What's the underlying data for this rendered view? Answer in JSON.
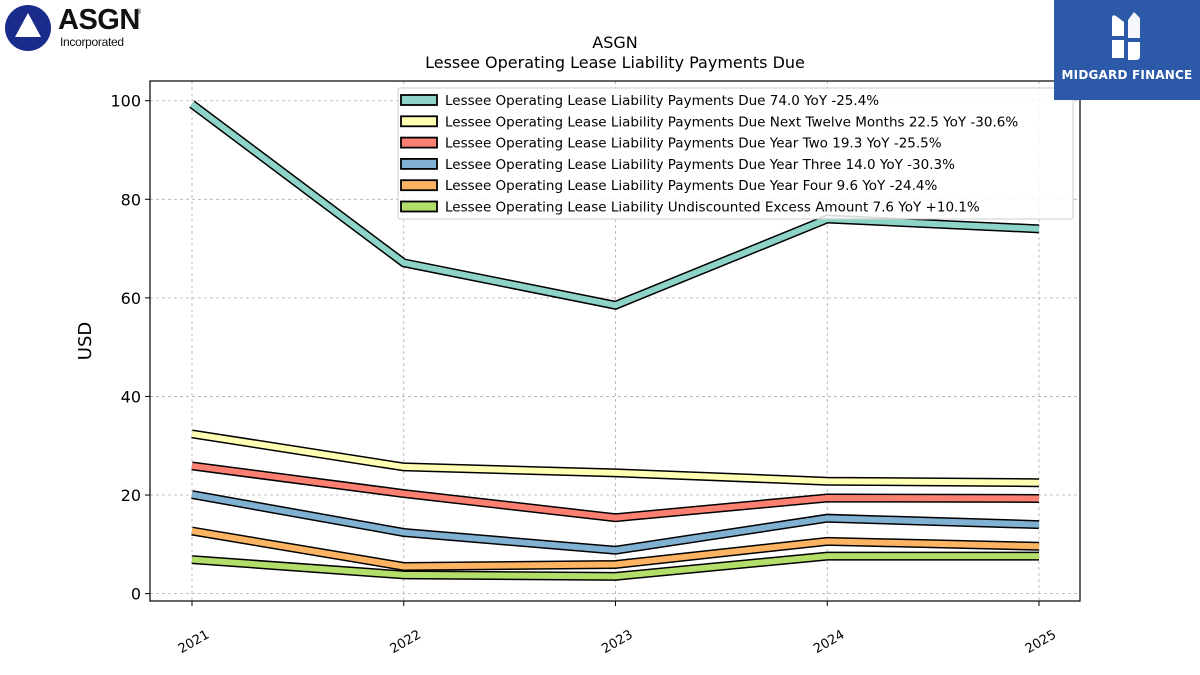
{
  "logos": {
    "left": {
      "name": "ASGN",
      "sub": "Incorporated",
      "reg": "®"
    },
    "right": {
      "name": "MIDGARD FINANCE"
    }
  },
  "chart_data": {
    "type": "line",
    "title": "ASGN",
    "subtitle": "Lessee Operating Lease Liability Payments Due",
    "xlabel": "",
    "ylabel": "USD",
    "categories": [
      "2021",
      "2022",
      "2023",
      "2024",
      "2025"
    ],
    "ylim": [
      -1.5,
      104
    ],
    "yticks": [
      0,
      20,
      40,
      60,
      80,
      100
    ],
    "grid": true,
    "legend_position": "top-right",
    "series": [
      {
        "name": "Lessee Operating Lease Liability Payments Due  74.0 YoY -25.4%",
        "color": "#8dd3c7",
        "values": [
          99.3,
          67.1,
          58.5,
          76.0,
          74.0
        ]
      },
      {
        "name": "Lessee Operating Lease Liability Payments Due Next Twelve Months  22.5 YoY -30.6%",
        "color": "#ffffb3",
        "values": [
          32.4,
          25.7,
          24.5,
          22.8,
          22.5
        ]
      },
      {
        "name": "Lessee Operating Lease Liability Payments Due Year Two  19.3 YoY -25.5%",
        "color": "#fb8072",
        "values": [
          25.9,
          20.3,
          15.4,
          19.4,
          19.3
        ]
      },
      {
        "name": "Lessee Operating Lease Liability Payments Due Year Three  14.0 YoY -30.3%",
        "color": "#80b1d3",
        "values": [
          20.1,
          12.4,
          8.8,
          15.3,
          14.0
        ]
      },
      {
        "name": "Lessee Operating Lease Liability Payments Due Year Four  9.6 YoY -24.4%",
        "color": "#fdb462",
        "values": [
          12.7,
          5.5,
          5.9,
          10.6,
          9.6
        ]
      },
      {
        "name": "Lessee Operating Lease Liability Undiscounted Excess Amount  7.6 YoY +10.1%",
        "color": "#b3de69",
        "values": [
          6.9,
          3.8,
          3.5,
          7.6,
          7.6
        ]
      }
    ]
  }
}
